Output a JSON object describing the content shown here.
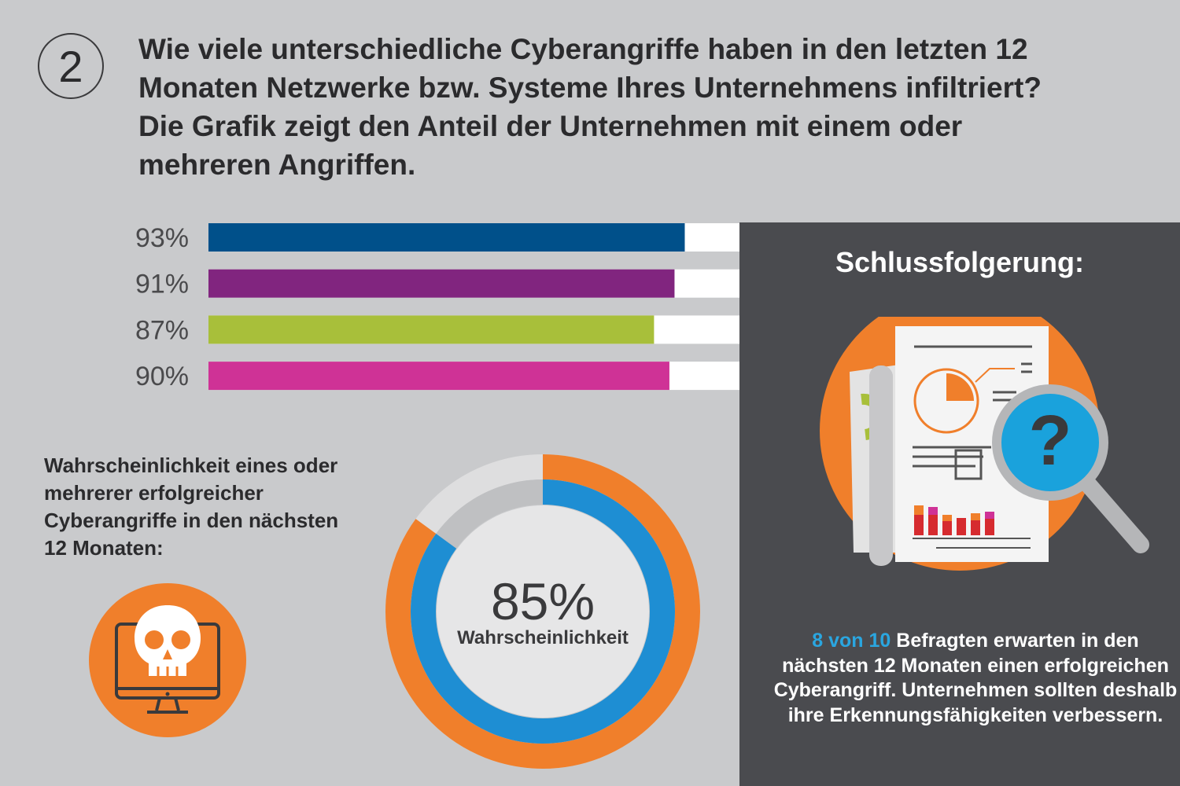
{
  "header": {
    "number": "2",
    "question": "Wie viele unterschiedliche Cyberangriffe haben in den letzten 12 Monaten Netzwerke bzw. Systeme Ihres Unternehmens infiltriert? Die Grafik zeigt den Anteil der Unternehmen mit einem oder mehreren Angriffen."
  },
  "chart_data": [
    {
      "type": "bar",
      "orientation": "horizontal",
      "categories": [
        "93%",
        "91%",
        "87%",
        "90%"
      ],
      "values": [
        93,
        91,
        87,
        90
      ],
      "colors": [
        "#00508a",
        "#81257f",
        "#a8bf3a",
        "#cf3296"
      ],
      "xlim": [
        0,
        100
      ]
    },
    {
      "type": "pie",
      "variant": "donut",
      "value": 85,
      "value_label": "85%",
      "sublabel": "Wahrscheinlichkeit",
      "colors": {
        "outer": "#f07f2b",
        "inner": "#1e8ed3",
        "track": "#dededf",
        "track_inner": "#bfc0c2"
      }
    }
  ],
  "probability": {
    "text": "Wahrscheinlichkeit eines oder mehrerer erfolgreicher Cyberangriffe in den nächsten 12 Monaten:",
    "icon": "skull-monitor-icon"
  },
  "conclusion": {
    "title": "Schlussfolgerung:",
    "highlight": "8 von 10",
    "text": " Befragten erwarten in den nächsten 12 Monaten einen erfolgreichen Cyberangriff. Unternehmen sollten deshalb ihre Erkennungsfähigkeiten verbessern.",
    "icon": "report-magnifier-icon"
  }
}
